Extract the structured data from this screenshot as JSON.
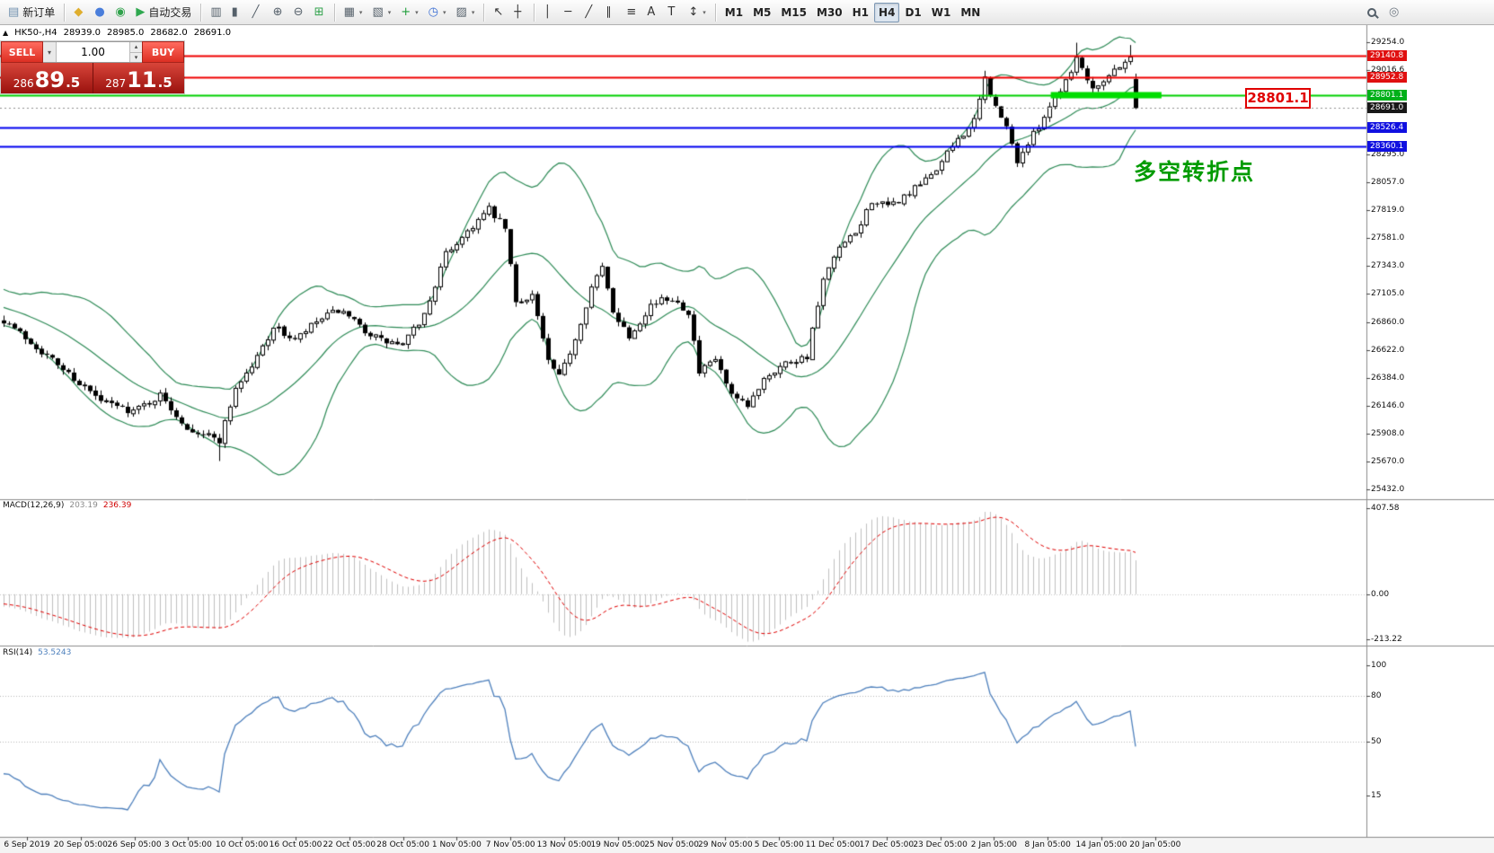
{
  "toolbar": {
    "groups": [
      {
        "items": [
          {
            "name": "new-order-button",
            "icon": "new-order-icon",
            "glyph": "▤",
            "glyph_color": "#6f8fae",
            "label": "新订单"
          }
        ]
      },
      {
        "items": [
          {
            "name": "metaeditor-button",
            "icon": "metaeditor-icon",
            "glyph": "◆",
            "glyph_color": "#dfae2e"
          },
          {
            "name": "community-button",
            "icon": "community-icon",
            "glyph": "●",
            "glyph_color": "#4a7edb"
          },
          {
            "name": "market-button",
            "icon": "market-icon",
            "glyph": "◉",
            "glyph_color": "#31a24c"
          },
          {
            "name": "autotrading-button",
            "icon": "autotrading-play-icon",
            "glyph": "▶",
            "glyph_color": "#2fa84f",
            "label": "自动交易"
          }
        ]
      },
      {
        "items": [
          {
            "name": "bar-chart-button",
            "icon": "bar-chart-icon",
            "glyph": "▥",
            "glyph_color": "#55606a"
          },
          {
            "name": "candlestick-chart-button",
            "icon": "candlestick-icon",
            "glyph": "▮",
            "glyph_color": "#55606a"
          },
          {
            "name": "line-chart-button",
            "icon": "line-chart-icon",
            "glyph": "╱",
            "glyph_color": "#55606a"
          },
          {
            "name": "zoom-in-button",
            "icon": "zoom-in-icon",
            "glyph": "⊕",
            "glyph_color": "#55606a"
          },
          {
            "name": "zoom-out-button",
            "icon": "zoom-out-icon",
            "glyph": "⊖",
            "glyph_color": "#55606a"
          },
          {
            "name": "tile-windows-button",
            "icon": "tile-windows-icon",
            "glyph": "⊞",
            "glyph_color": "#31a24c"
          }
        ]
      },
      {
        "items": [
          {
            "name": "new-chart-button",
            "icon": "new-chart-icon",
            "glyph": "▦",
            "glyph_color": "#55606a",
            "caret": true
          },
          {
            "name": "profiles-button",
            "icon": "profiles-icon",
            "glyph": "▧",
            "glyph_color": "#55606a",
            "caret": true
          },
          {
            "name": "indicators-button",
            "icon": "indicators-plus-icon",
            "glyph": "+",
            "glyph_color": "#1f9e3a",
            "caret": true
          },
          {
            "name": "periods-button",
            "icon": "clock-icon",
            "glyph": "◷",
            "glyph_color": "#3b6fd4",
            "caret": true
          },
          {
            "name": "templates-button",
            "icon": "template-icon",
            "glyph": "▨",
            "glyph_color": "#55606a",
            "caret": true
          }
        ]
      },
      {
        "items": [
          {
            "name": "cursor-button",
            "icon": "cursor-icon",
            "glyph": "↖",
            "glyph_color": "#333333"
          },
          {
            "name": "crosshair-button",
            "icon": "crosshair-icon",
            "glyph": "┼",
            "glyph_color": "#333333"
          }
        ]
      },
      {
        "items": [
          {
            "name": "vertical-line-button",
            "icon": "vertical-line-icon",
            "glyph": "│",
            "glyph_color": "#333333"
          },
          {
            "name": "horizontal-line-button",
            "icon": "horizontal-line-icon",
            "glyph": "─",
            "glyph_color": "#333333"
          },
          {
            "name": "trendline-button",
            "icon": "trendline-icon",
            "glyph": "╱",
            "glyph_color": "#333333"
          },
          {
            "name": "channel-button",
            "icon": "channel-icon",
            "glyph": "∥",
            "glyph_color": "#333333"
          },
          {
            "name": "fibonacci-button",
            "icon": "fibonacci-icon",
            "glyph": "≡",
            "glyph_color": "#333333"
          },
          {
            "name": "text-button",
            "icon": "text-icon",
            "glyph": "A",
            "glyph_color": "#333333"
          },
          {
            "name": "label-button",
            "icon": "label-icon",
            "glyph": "T",
            "glyph_color": "#333333"
          },
          {
            "name": "arrows-button",
            "icon": "arrow-objects-icon",
            "glyph": "↕",
            "glyph_color": "#333333",
            "caret": true
          }
        ]
      },
      {
        "type": "timeframes",
        "items": [
          {
            "name": "timeframe-m1-button",
            "label": "M1"
          },
          {
            "name": "timeframe-m5-button",
            "label": "M5"
          },
          {
            "name": "timeframe-m15-button",
            "label": "M15"
          },
          {
            "name": "timeframe-m30-button",
            "label": "M30"
          },
          {
            "name": "timeframe-h1-button",
            "label": "H1"
          },
          {
            "name": "timeframe-h4-button",
            "label": "H4",
            "active": true
          },
          {
            "name": "timeframe-d1-button",
            "label": "D1"
          },
          {
            "name": "timeframe-w1-button",
            "label": "W1"
          },
          {
            "name": "timeframe-mn-button",
            "label": "MN"
          }
        ]
      },
      {
        "align": "right",
        "items": [
          {
            "name": "search-button",
            "icon": "search-icon",
            "magnifier": true
          },
          {
            "name": "quick-help-button",
            "icon": "help-circle-icon",
            "glyph": "◎",
            "glyph_color": "#707a84"
          }
        ]
      }
    ]
  },
  "chart": {
    "collapse_arrow": "▲",
    "header": {
      "symbol_period": "HK50-,H4",
      "open": "28939.0",
      "high": "28985.0",
      "low": "28682.0",
      "close": "28691.0"
    },
    "one_click": {
      "sell_label": "SELL",
      "buy_label": "BUY",
      "volume": "1.00",
      "volume_dropdown_glyph": "▾",
      "volume_up_glyph": "▴",
      "volume_down_glyph": "▾",
      "sell_price": {
        "prefix": "286",
        "big": "89",
        "pip": ".5"
      },
      "buy_price": {
        "prefix": "287",
        "big": "11",
        "pip": ".5"
      }
    },
    "price_label": "28801.1",
    "annotation": "多空转折点"
  },
  "chart_data": {
    "type": "candlestick",
    "symbol": "HK50-",
    "period": "H4",
    "bars": 211,
    "current": {
      "open": 28939.0,
      "high": 28985.0,
      "low": 28682.0,
      "close": 28691.0,
      "bid": 28689.5,
      "ask": 28711.5
    },
    "y_axis_ticks": [
      29254.0,
      29016.6,
      28295.0,
      28057.0,
      27819.0,
      27581.0,
      27343.0,
      27105.0,
      26860.0,
      26622.0,
      26384.0,
      26146.0,
      25908.0,
      25670.0,
      25432.0
    ],
    "x_axis_labels": [
      "6 Sep 2019",
      "20 Sep 05:00",
      "26 Sep 05:00",
      "3 Oct 05:00",
      "10 Oct 05:00",
      "16 Oct 05:00",
      "22 Oct 05:00",
      "28 Oct 05:00",
      "1 Nov 05:00",
      "7 Nov 05:00",
      "13 Nov 05:00",
      "19 Nov 05:00",
      "25 Nov 05:00",
      "29 Nov 05:00",
      "5 Dec 05:00",
      "11 Dec 05:00",
      "17 Dec 05:00",
      "23 Dec 05:00",
      "2 Jan 05:00",
      "8 Jan 05:00",
      "14 Jan 05:00",
      "20 Jan 05:00"
    ],
    "levels": [
      {
        "price": 29140.8,
        "color": "#f00000",
        "badge": "#e01010",
        "style": "solid",
        "width": 2
      },
      {
        "price": 28952.8,
        "color": "#f00000",
        "badge": "#e01010",
        "style": "solid",
        "width": 2
      },
      {
        "price": 28801.1,
        "color": "#00d000",
        "badge": "#00b018",
        "style": "solid",
        "width": 2
      },
      {
        "price": 28691.0,
        "color": "#909090",
        "badge": "#181818",
        "style": "dot",
        "width": 1
      },
      {
        "price": 28526.4,
        "color": "#0000f0",
        "badge": "#1010e0",
        "style": "solid",
        "width": 2
      },
      {
        "price": 28360.1,
        "color": "#0000f0",
        "badge": "#1010e0",
        "style": "solid",
        "width": 2
      }
    ],
    "highlight_bar": {
      "price": 28801.1,
      "x1_frac": 0.769,
      "x2_frac": 0.85,
      "color": "#00dd00",
      "thickness": 7
    },
    "price_anchors": [
      [
        0,
        26880
      ],
      [
        6,
        26650
      ],
      [
        12,
        26420
      ],
      [
        18,
        26180
      ],
      [
        24,
        26100
      ],
      [
        29,
        26230
      ],
      [
        34,
        25960
      ],
      [
        40,
        25850
      ],
      [
        43,
        26300
      ],
      [
        46,
        26480
      ],
      [
        50,
        26820
      ],
      [
        54,
        26700
      ],
      [
        58,
        26860
      ],
      [
        62,
        26960
      ],
      [
        66,
        26820
      ],
      [
        70,
        26700
      ],
      [
        74,
        26660
      ],
      [
        78,
        26920
      ],
      [
        82,
        27440
      ],
      [
        86,
        27640
      ],
      [
        90,
        27820
      ],
      [
        93,
        27660
      ],
      [
        95,
        27020
      ],
      [
        98,
        27100
      ],
      [
        101,
        26520
      ],
      [
        103,
        26380
      ],
      [
        106,
        26720
      ],
      [
        109,
        27160
      ],
      [
        111,
        27320
      ],
      [
        113,
        26960
      ],
      [
        116,
        26740
      ],
      [
        120,
        27010
      ],
      [
        124,
        27070
      ],
      [
        127,
        26950
      ],
      [
        129,
        26420
      ],
      [
        132,
        26540
      ],
      [
        135,
        26220
      ],
      [
        138,
        26130
      ],
      [
        141,
        26390
      ],
      [
        145,
        26510
      ],
      [
        149,
        26570
      ],
      [
        152,
        27210
      ],
      [
        155,
        27490
      ],
      [
        158,
        27610
      ],
      [
        161,
        27900
      ],
      [
        164,
        27840
      ],
      [
        168,
        27960
      ],
      [
        171,
        28070
      ],
      [
        174,
        28230
      ],
      [
        177,
        28430
      ],
      [
        180,
        28570
      ],
      [
        182,
        28940
      ],
      [
        184,
        28690
      ],
      [
        186,
        28520
      ],
      [
        188,
        28240
      ],
      [
        191,
        28460
      ],
      [
        194,
        28710
      ],
      [
        197,
        28930
      ],
      [
        199,
        29120
      ],
      [
        202,
        28870
      ],
      [
        205,
        28970
      ],
      [
        207,
        29060
      ],
      [
        209,
        29120
      ],
      [
        210,
        28700
      ]
    ],
    "bollinger": {
      "period": 20,
      "deviation": 2,
      "color": "#2e8b57"
    },
    "macd": {
      "label": "MACD(12,26,9)",
      "value_main": "203.19",
      "value_signal": "236.39",
      "axis_ticks": [
        407.58,
        0.0,
        -213.22
      ],
      "hist_color": "#c0c0c0",
      "signal_color": "#e00000"
    },
    "rsi": {
      "label": "RSI(14)",
      "value": "53.5243",
      "axis_ticks": [
        100,
        80,
        50,
        15
      ],
      "levels": [
        80,
        50
      ],
      "line_color": "#4f81bd"
    }
  }
}
